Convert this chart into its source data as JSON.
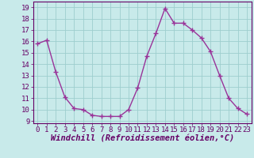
{
  "x": [
    0,
    1,
    2,
    3,
    4,
    5,
    6,
    7,
    8,
    9,
    10,
    11,
    12,
    13,
    14,
    15,
    16,
    17,
    18,
    19,
    20,
    21,
    22,
    23
  ],
  "y": [
    15.8,
    16.1,
    13.3,
    11.1,
    10.1,
    10.0,
    9.5,
    9.4,
    9.4,
    9.4,
    10.0,
    11.9,
    14.7,
    16.7,
    18.9,
    17.6,
    17.6,
    17.0,
    16.3,
    15.1,
    13.0,
    11.0,
    10.1,
    9.6
  ],
  "line_color": "#993399",
  "marker": "+",
  "marker_size": 4,
  "marker_linewidth": 1.0,
  "bg_color": "#c8eaea",
  "grid_color": "#9ecece",
  "xlabel": "Windchill (Refroidissement éolien,°C)",
  "ylim": [
    8.8,
    19.5
  ],
  "xlim": [
    -0.5,
    23.5
  ],
  "yticks": [
    9,
    10,
    11,
    12,
    13,
    14,
    15,
    16,
    17,
    18,
    19
  ],
  "xticks": [
    0,
    1,
    2,
    3,
    4,
    5,
    6,
    7,
    8,
    9,
    10,
    11,
    12,
    13,
    14,
    15,
    16,
    17,
    18,
    19,
    20,
    21,
    22,
    23
  ],
  "tick_label_fontsize": 6.5,
  "xlabel_fontsize": 7.5,
  "line_width": 1.0
}
